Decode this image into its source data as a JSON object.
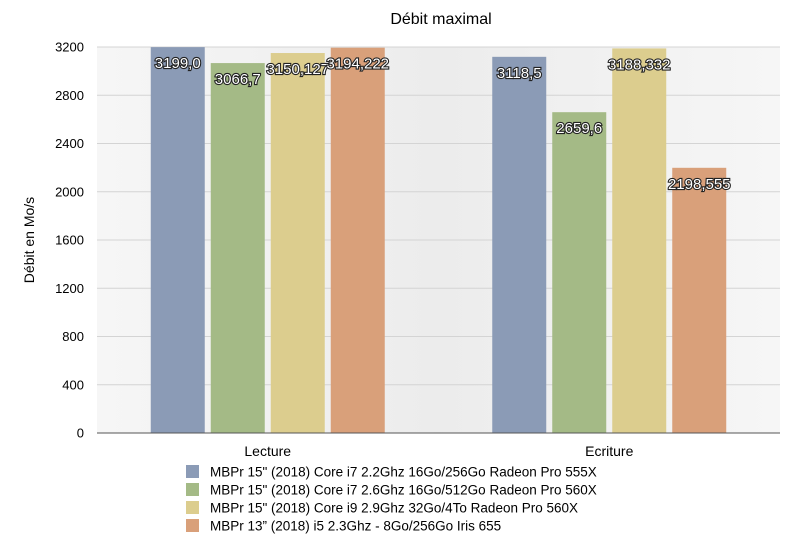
{
  "chart_data": {
    "type": "bar",
    "title": "Débit maximal",
    "xlabel": "",
    "ylabel": "Débit en Mo/s",
    "categories": [
      "Lecture",
      "Ecriture"
    ],
    "ylim": [
      0,
      3200
    ],
    "yticks": [
      0,
      400,
      800,
      1200,
      1600,
      2000,
      2400,
      2800,
      3200
    ],
    "grid": true,
    "legend_position": "bottom",
    "series": [
      {
        "name": "MBPr 15\" (2018) Core i7 2.2Ghz 16Go/256Go Radeon Pro 555X",
        "color": "#8b9bb6",
        "values": [
          3199.0,
          3118.5
        ],
        "labels": [
          "3199,0",
          "3118,5"
        ]
      },
      {
        "name": "MBPr 15\" (2018) Core i7 2.6Ghz 16Go/512Go Radeon Pro 560X",
        "color": "#a4ba86",
        "values": [
          3066.7,
          2659.6
        ],
        "labels": [
          "3066,7",
          "2659,6"
        ]
      },
      {
        "name": "MBPr 15\" (2018) Core i9 2.9Ghz 32Go/4To Radeon Pro 560X",
        "color": "#dccd8e",
        "values": [
          3150.127,
          3188.332
        ],
        "labels": [
          "3150,127",
          "3188,332"
        ]
      },
      {
        "name": "MBPr 13” (2018) i5 2.3Ghz - 8Go/256Go Iris 655",
        "color": "#d9a07a",
        "values": [
          3194.222,
          2198.555
        ],
        "labels": [
          "3194,222",
          "2198,555"
        ]
      }
    ]
  }
}
